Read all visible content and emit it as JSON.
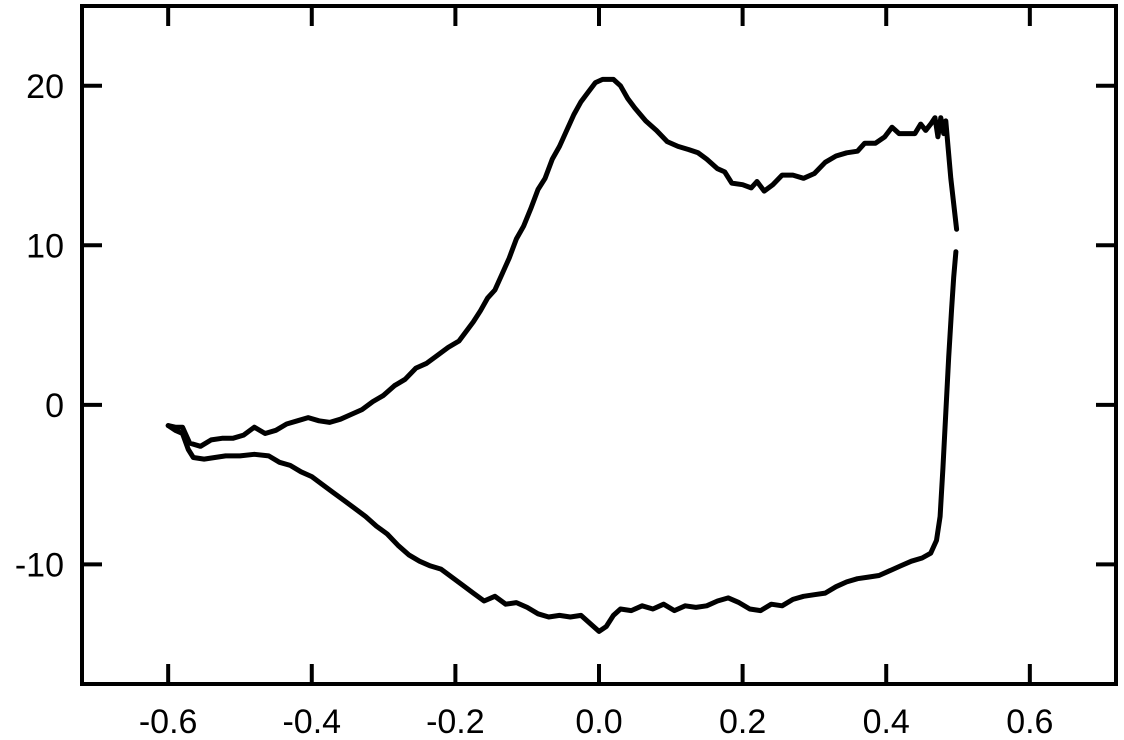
{
  "chart_data": {
    "type": "line",
    "title": "",
    "xlabel": "",
    "ylabel": "",
    "xlim": [
      -0.72,
      0.72
    ],
    "ylim": [
      -17.5,
      25
    ],
    "grid": false,
    "legend": "none",
    "colors": {
      "line": "#000000",
      "axes": "#000000",
      "background": "#ffffff"
    },
    "x_ticks": [
      -0.6,
      -0.4,
      -0.2,
      0.0,
      0.2,
      0.4,
      0.6
    ],
    "x_tick_labels": [
      "-0.6",
      "-0.4",
      "-0.2",
      "0.0",
      "0.2",
      "0.4",
      "0.6"
    ],
    "y_ticks": [
      -10,
      0,
      10,
      20
    ],
    "y_tick_labels": [
      "-10",
      "0",
      "10",
      "20"
    ],
    "series": [
      {
        "points": [
          [
            0.498,
            11.0
          ],
          [
            0.494,
            12.6
          ],
          [
            0.49,
            14.2
          ],
          [
            0.486,
            16.2
          ],
          [
            0.483,
            17.8
          ],
          [
            0.48,
            17.0
          ],
          [
            0.476,
            18.0
          ],
          [
            0.472,
            16.8
          ],
          [
            0.468,
            18.0
          ],
          [
            0.462,
            17.6
          ],
          [
            0.455,
            17.2
          ],
          [
            0.448,
            17.6
          ],
          [
            0.44,
            17.0
          ],
          [
            0.43,
            17.0
          ],
          [
            0.418,
            17.0
          ],
          [
            0.408,
            17.4
          ],
          [
            0.398,
            16.8
          ],
          [
            0.385,
            16.4
          ],
          [
            0.37,
            16.4
          ],
          [
            0.36,
            15.9
          ],
          [
            0.345,
            15.8
          ],
          [
            0.33,
            15.6
          ],
          [
            0.315,
            15.2
          ],
          [
            0.3,
            14.5
          ],
          [
            0.285,
            14.2
          ],
          [
            0.27,
            14.4
          ],
          [
            0.255,
            14.4
          ],
          [
            0.242,
            13.8
          ],
          [
            0.23,
            13.4
          ],
          [
            0.22,
            14.0
          ],
          [
            0.212,
            13.6
          ],
          [
            0.2,
            13.8
          ],
          [
            0.185,
            13.9
          ],
          [
            0.175,
            14.6
          ],
          [
            0.165,
            14.8
          ],
          [
            0.15,
            15.4
          ],
          [
            0.138,
            15.8
          ],
          [
            0.125,
            16.0
          ],
          [
            0.11,
            16.2
          ],
          [
            0.095,
            16.5
          ],
          [
            0.08,
            17.2
          ],
          [
            0.065,
            17.8
          ],
          [
            0.05,
            18.6
          ],
          [
            0.04,
            19.2
          ],
          [
            0.03,
            20.0
          ],
          [
            0.02,
            20.4
          ],
          [
            0.005,
            20.4
          ],
          [
            -0.005,
            20.2
          ],
          [
            -0.015,
            19.6
          ],
          [
            -0.025,
            19.0
          ],
          [
            -0.035,
            18.2
          ],
          [
            -0.045,
            17.2
          ],
          [
            -0.055,
            16.2
          ],
          [
            -0.065,
            15.4
          ],
          [
            -0.075,
            14.2
          ],
          [
            -0.085,
            13.5
          ],
          [
            -0.095,
            12.3
          ],
          [
            -0.105,
            11.2
          ],
          [
            -0.115,
            10.4
          ],
          [
            -0.125,
            9.2
          ],
          [
            -0.135,
            8.2
          ],
          [
            -0.145,
            7.2
          ],
          [
            -0.155,
            6.7
          ],
          [
            -0.165,
            5.9
          ],
          [
            -0.175,
            5.2
          ],
          [
            -0.185,
            4.6
          ],
          [
            -0.195,
            4.0
          ],
          [
            -0.21,
            3.6
          ],
          [
            -0.225,
            3.1
          ],
          [
            -0.24,
            2.6
          ],
          [
            -0.255,
            2.3
          ],
          [
            -0.27,
            1.6
          ],
          [
            -0.285,
            1.2
          ],
          [
            -0.3,
            0.6
          ],
          [
            -0.315,
            0.2
          ],
          [
            -0.33,
            -0.3
          ],
          [
            -0.345,
            -0.6
          ],
          [
            -0.36,
            -0.9
          ],
          [
            -0.375,
            -1.1
          ],
          [
            -0.39,
            -1.0
          ],
          [
            -0.405,
            -0.8
          ],
          [
            -0.42,
            -1.0
          ],
          [
            -0.435,
            -1.2
          ],
          [
            -0.45,
            -1.6
          ],
          [
            -0.465,
            -1.8
          ],
          [
            -0.48,
            -1.4
          ],
          [
            -0.495,
            -1.9
          ],
          [
            -0.51,
            -2.1
          ],
          [
            -0.525,
            -2.1
          ],
          [
            -0.54,
            -2.2
          ],
          [
            -0.555,
            -2.6
          ],
          [
            -0.57,
            -2.4
          ],
          [
            -0.58,
            -1.4
          ],
          [
            -0.59,
            -1.4
          ],
          [
            -0.6,
            -1.3
          ]
        ]
      },
      {
        "points": [
          [
            -0.6,
            -1.3
          ],
          [
            -0.59,
            -1.6
          ],
          [
            -0.58,
            -1.8
          ],
          [
            -0.572,
            -2.8
          ],
          [
            -0.565,
            -3.3
          ],
          [
            -0.55,
            -3.4
          ],
          [
            -0.535,
            -3.3
          ],
          [
            -0.52,
            -3.2
          ],
          [
            -0.5,
            -3.2
          ],
          [
            -0.48,
            -3.1
          ],
          [
            -0.46,
            -3.2
          ],
          [
            -0.445,
            -3.6
          ],
          [
            -0.43,
            -3.8
          ],
          [
            -0.415,
            -4.2
          ],
          [
            -0.4,
            -4.5
          ],
          [
            -0.385,
            -5.0
          ],
          [
            -0.37,
            -5.5
          ],
          [
            -0.355,
            -6.0
          ],
          [
            -0.34,
            -6.5
          ],
          [
            -0.325,
            -7.0
          ],
          [
            -0.31,
            -7.6
          ],
          [
            -0.295,
            -8.1
          ],
          [
            -0.28,
            -8.8
          ],
          [
            -0.265,
            -9.4
          ],
          [
            -0.25,
            -9.8
          ],
          [
            -0.235,
            -10.1
          ],
          [
            -0.22,
            -10.3
          ],
          [
            -0.205,
            -10.8
          ],
          [
            -0.19,
            -11.3
          ],
          [
            -0.175,
            -11.8
          ],
          [
            -0.16,
            -12.3
          ],
          [
            -0.145,
            -12.0
          ],
          [
            -0.13,
            -12.5
          ],
          [
            -0.115,
            -12.4
          ],
          [
            -0.1,
            -12.7
          ],
          [
            -0.085,
            -13.1
          ],
          [
            -0.07,
            -13.3
          ],
          [
            -0.055,
            -13.2
          ],
          [
            -0.04,
            -13.3
          ],
          [
            -0.025,
            -13.2
          ],
          [
            -0.01,
            -13.8
          ],
          [
            0.0,
            -14.2
          ],
          [
            0.01,
            -13.9
          ],
          [
            0.02,
            -13.2
          ],
          [
            0.03,
            -12.8
          ],
          [
            0.045,
            -12.9
          ],
          [
            0.06,
            -12.6
          ],
          [
            0.075,
            -12.8
          ],
          [
            0.09,
            -12.5
          ],
          [
            0.105,
            -12.9
          ],
          [
            0.12,
            -12.6
          ],
          [
            0.135,
            -12.7
          ],
          [
            0.15,
            -12.6
          ],
          [
            0.165,
            -12.3
          ],
          [
            0.18,
            -12.1
          ],
          [
            0.195,
            -12.4
          ],
          [
            0.21,
            -12.8
          ],
          [
            0.225,
            -12.9
          ],
          [
            0.24,
            -12.5
          ],
          [
            0.255,
            -12.6
          ],
          [
            0.27,
            -12.2
          ],
          [
            0.285,
            -12.0
          ],
          [
            0.3,
            -11.9
          ],
          [
            0.315,
            -11.8
          ],
          [
            0.33,
            -11.4
          ],
          [
            0.345,
            -11.1
          ],
          [
            0.36,
            -10.9
          ],
          [
            0.375,
            -10.8
          ],
          [
            0.39,
            -10.7
          ],
          [
            0.405,
            -10.4
          ],
          [
            0.42,
            -10.1
          ],
          [
            0.435,
            -9.8
          ],
          [
            0.45,
            -9.6
          ],
          [
            0.462,
            -9.3
          ],
          [
            0.47,
            -8.5
          ],
          [
            0.475,
            -7.0
          ],
          [
            0.479,
            -4.0
          ],
          [
            0.483,
            -0.5
          ],
          [
            0.487,
            3.0
          ],
          [
            0.491,
            6.0
          ],
          [
            0.494,
            8.0
          ],
          [
            0.497,
            9.6
          ]
        ]
      }
    ]
  }
}
